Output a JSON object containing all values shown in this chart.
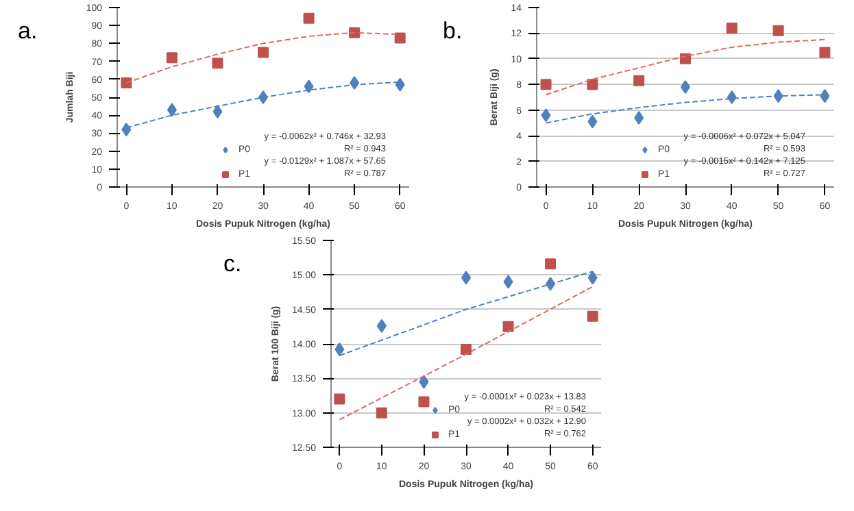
{
  "chart_data": [
    {
      "type": "scatter",
      "title": "a.",
      "xlabel": "Dosis Pupuk Nitrogen (kg/ha)",
      "ylabel": "Jumlah Biji",
      "x": [
        0,
        10,
        20,
        30,
        40,
        50,
        60
      ],
      "xlim": [
        -2,
        62
      ],
      "xticks": [
        0,
        10,
        20,
        30,
        40,
        50,
        60
      ],
      "ylim": [
        0,
        100
      ],
      "yticks": [
        0,
        10,
        20,
        30,
        40,
        50,
        60,
        70,
        80,
        90,
        100
      ],
      "grid": false,
      "legend": "bottom",
      "series": [
        {
          "name": "P0",
          "color": "#4f81bd",
          "marker": "diamond",
          "values": [
            32,
            43,
            42,
            50,
            56,
            58,
            57
          ]
        },
        {
          "name": "P1",
          "color": "#c0504d",
          "marker": "square",
          "values": [
            58,
            72,
            69,
            75,
            94,
            86,
            83
          ]
        },
        {
          "type": "line",
          "color": "#4f81bd",
          "line_style": "dashed",
          "x": [
            0,
            10,
            20,
            30,
            40,
            50,
            60
          ],
          "values": [
            33,
            40,
            45,
            50,
            54,
            57,
            58.5
          ]
        },
        {
          "type": "line",
          "color": "#e06666",
          "line_style": "dashed",
          "x": [
            0,
            10,
            20,
            30,
            40,
            50,
            60
          ],
          "values": [
            58,
            67,
            74,
            80,
            84,
            86,
            85
          ]
        }
      ],
      "annotations": [
        "y = -0.0062x² + 0.746x + 32.93",
        "R² = 0.943",
        "y = -0.0129x² + 1.087x + 57.65",
        "R² = 0.787"
      ]
    },
    {
      "type": "scatter",
      "title": "b.",
      "xlabel": "Dosis Pupuk Nitrogen (kg/ha)",
      "ylabel": "Berat Biji (g)",
      "x": [
        0,
        10,
        20,
        30,
        40,
        50,
        60
      ],
      "xlim": [
        -2,
        62
      ],
      "xticks": [
        0,
        10,
        20,
        30,
        40,
        50,
        60
      ],
      "ylim": [
        0,
        14
      ],
      "yticks": [
        0,
        2,
        4,
        6,
        8,
        10,
        12,
        14
      ],
      "grid": "y",
      "legend": "bottom",
      "series": [
        {
          "name": "P0",
          "color": "#4f81bd",
          "marker": "diamond",
          "values": [
            5.6,
            5.1,
            5.4,
            7.8,
            7.0,
            7.1,
            7.1
          ]
        },
        {
          "name": "P1",
          "color": "#c0504d",
          "marker": "square",
          "values": [
            8.0,
            8.0,
            8.3,
            10.0,
            12.4,
            12.2,
            10.5
          ]
        },
        {
          "type": "line",
          "color": "#4f81bd",
          "line_style": "dashed",
          "x": [
            0,
            10,
            20,
            30,
            40,
            50,
            60
          ],
          "values": [
            5.0,
            5.7,
            6.2,
            6.6,
            6.9,
            7.1,
            7.2
          ]
        },
        {
          "type": "line",
          "color": "#e06666",
          "line_style": "dashed",
          "x": [
            0,
            10,
            20,
            30,
            40,
            50,
            60
          ],
          "values": [
            7.2,
            8.4,
            9.3,
            10.2,
            10.9,
            11.3,
            11.5
          ]
        }
      ],
      "annotations": [
        "y = -0.0006x² + 0.072x + 5.047",
        "R² = 0.593",
        "y = -0.0015x² + 0.142x + 7.125",
        "R² = 0.727"
      ]
    },
    {
      "type": "scatter",
      "title": "c.",
      "xlabel": "Dosis Pupuk Nitrogen (kg/ha)",
      "ylabel": "Berat 100 Biji (g)",
      "x": [
        0,
        10,
        20,
        30,
        40,
        50,
        60
      ],
      "xlim": [
        -2,
        62
      ],
      "xticks": [
        0,
        10,
        20,
        30,
        40,
        50,
        60
      ],
      "ylim": [
        12.5,
        15.5
      ],
      "yticks": [
        {
          "value": 12.5,
          "label": "12.50"
        },
        {
          "value": 13,
          "label": "13.00"
        },
        {
          "value": 13.5,
          "label": "13.50"
        },
        {
          "value": 14,
          "label": "14.00"
        },
        {
          "value": 14.5,
          "label": "14.50"
        },
        {
          "value": 15,
          "label": "15.00"
        },
        {
          "value": 15.5,
          "label": "15.50"
        }
      ],
      "grid": "y",
      "legend": "bottom",
      "series": [
        {
          "name": "P0",
          "color": "#4f81bd",
          "marker": "diamond",
          "values": [
            13.92,
            14.26,
            13.45,
            14.96,
            14.9,
            14.87,
            14.96
          ]
        },
        {
          "name": "P1",
          "color": "#c0504d",
          "marker": "square",
          "values": [
            13.2,
            13.0,
            13.16,
            13.92,
            14.25,
            15.16,
            14.4
          ]
        },
        {
          "type": "line",
          "color": "#4f81bd",
          "line_style": "dashed",
          "x": [
            0,
            30,
            60
          ],
          "values": [
            13.83,
            14.5,
            15.05
          ]
        },
        {
          "type": "line",
          "color": "#e06666",
          "line_style": "dashed",
          "x": [
            0,
            30,
            60
          ],
          "values": [
            12.9,
            13.85,
            14.83
          ]
        }
      ],
      "annotations": [
        "y = -0.0001x² + 0.023x + 13.83",
        "R² = 0.542",
        "y = 0.0002x² + 0.032x + 12.90",
        "R² = 0.762"
      ]
    }
  ]
}
